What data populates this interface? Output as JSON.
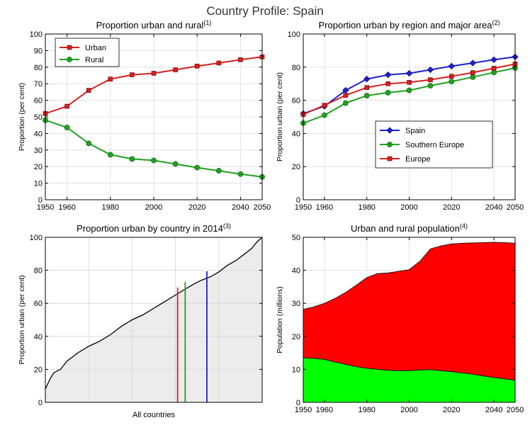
{
  "page": {
    "title": "Country Profile: Spain"
  },
  "chart_data": [
    {
      "type": "line",
      "title": "Proportion urban and rural",
      "note": "(1)",
      "xlabel": "",
      "ylabel": "Proportion (per cent)",
      "xlim": [
        1950,
        2050
      ],
      "ylim": [
        0,
        100
      ],
      "xticks": [
        1950,
        1960,
        1980,
        2000,
        2020,
        2040,
        2050
      ],
      "yticks": [
        0,
        10,
        20,
        30,
        40,
        50,
        60,
        70,
        80,
        90,
        100
      ],
      "grid": true,
      "legend": "top-left",
      "x": [
        1950,
        1960,
        1970,
        1980,
        1990,
        2000,
        2010,
        2020,
        2030,
        2040,
        2050
      ],
      "series": [
        {
          "name": "Urban",
          "color": "#d62020",
          "marker": "square",
          "values": [
            52.0,
            56.4,
            66.0,
            72.8,
            75.4,
            76.3,
            78.4,
            80.6,
            82.5,
            84.5,
            86.2
          ]
        },
        {
          "name": "Rural",
          "color": "#22a022",
          "marker": "circle",
          "values": [
            48.0,
            43.6,
            34.0,
            27.2,
            24.6,
            23.7,
            21.6,
            19.4,
            17.5,
            15.5,
            13.8
          ]
        }
      ]
    },
    {
      "type": "line",
      "title": "Proportion urban by region and major area",
      "note": "(2)",
      "xlabel": "",
      "ylabel": "Proportion urban (per cent)",
      "xlim": [
        1950,
        2050
      ],
      "ylim": [
        0,
        100
      ],
      "xticks": [
        1950,
        1960,
        1980,
        2000,
        2020,
        2040,
        2050
      ],
      "yticks": [
        0,
        20,
        40,
        60,
        80,
        100
      ],
      "grid": true,
      "legend": "center-right",
      "x": [
        1950,
        1960,
        1970,
        1980,
        1990,
        2000,
        2010,
        2020,
        2030,
        2040,
        2050
      ],
      "series": [
        {
          "name": "Spain",
          "color": "#1f1fcc",
          "marker": "diamond",
          "values": [
            52.0,
            56.4,
            66.0,
            72.8,
            75.4,
            76.3,
            78.4,
            80.6,
            82.5,
            84.5,
            86.2
          ]
        },
        {
          "name": "Southern Europe",
          "color": "#22a022",
          "marker": "circle",
          "values": [
            46.2,
            51.0,
            58.3,
            62.8,
            64.6,
            66.0,
            68.8,
            71.3,
            74.0,
            76.8,
            79.5
          ]
        },
        {
          "name": "Europe",
          "color": "#d62020",
          "marker": "square",
          "values": [
            51.5,
            57.0,
            63.0,
            67.7,
            70.0,
            70.8,
            72.4,
            74.5,
            76.7,
            79.3,
            81.9
          ]
        }
      ]
    },
    {
      "type": "area",
      "title": "Proportion urban by country in 2014",
      "note": "(3)",
      "xlabel": "All countries",
      "ylabel": "Proportion urban (per cent)",
      "ylim": [
        0,
        100
      ],
      "yticks": [
        0,
        20,
        40,
        60,
        80,
        100
      ],
      "grid": true,
      "fill_color": "#ececec",
      "curve_points": [
        [
          0.0,
          8
        ],
        [
          0.01,
          11
        ],
        [
          0.025,
          15
        ],
        [
          0.04,
          18
        ],
        [
          0.07,
          20
        ],
        [
          0.1,
          25
        ],
        [
          0.15,
          30
        ],
        [
          0.2,
          34
        ],
        [
          0.25,
          37
        ],
        [
          0.3,
          41
        ],
        [
          0.35,
          46
        ],
        [
          0.4,
          50
        ],
        [
          0.45,
          53
        ],
        [
          0.5,
          57
        ],
        [
          0.55,
          61
        ],
        [
          0.6,
          65
        ],
        [
          0.65,
          69
        ],
        [
          0.69,
          72
        ],
        [
          0.72,
          74
        ],
        [
          0.76,
          76
        ],
        [
          0.8,
          79
        ],
        [
          0.84,
          83
        ],
        [
          0.88,
          86
        ],
        [
          0.92,
          90
        ],
        [
          0.95,
          93
        ],
        [
          0.975,
          97
        ],
        [
          1.0,
          100
        ]
      ],
      "markers": [
        {
          "position": 0.61,
          "value": 69.6,
          "color": "#e02020"
        },
        {
          "position": 0.645,
          "value": 73.0,
          "color": "#22a022"
        },
        {
          "position": 0.745,
          "value": 79.4,
          "color": "#1f1fcc"
        }
      ]
    },
    {
      "type": "area",
      "title": "Urban and rural population",
      "note": "(4)",
      "xlabel": "",
      "ylabel": "Population (millions)",
      "xlim": [
        1950,
        2050
      ],
      "ylim": [
        0,
        50
      ],
      "xticks": [
        1950,
        1960,
        1980,
        2000,
        2020,
        2040,
        2050
      ],
      "yticks": [
        0,
        10,
        20,
        30,
        40,
        50
      ],
      "grid": true,
      "stacked": true,
      "x": [
        1950,
        1955,
        1960,
        1965,
        1970,
        1975,
        1980,
        1985,
        1990,
        1995,
        2000,
        2005,
        2010,
        2015,
        2020,
        2025,
        2030,
        2035,
        2040,
        2045,
        2050
      ],
      "series": [
        {
          "name": "",
          "color": "#00ff00",
          "values": [
            13.5,
            13.3,
            13.0,
            12.2,
            11.5,
            10.8,
            10.3,
            10.0,
            9.7,
            9.6,
            9.6,
            9.8,
            9.9,
            9.6,
            9.3,
            8.9,
            8.5,
            8.0,
            7.5,
            7.1,
            6.7
          ]
        },
        {
          "name": "",
          "color": "#ff0000",
          "values": [
            14.7,
            15.6,
            17.0,
            19.3,
            21.8,
            24.7,
            27.5,
            29.0,
            29.5,
            30.1,
            30.6,
            32.9,
            36.6,
            37.8,
            38.7,
            39.3,
            39.8,
            40.4,
            41.0,
            41.3,
            41.5
          ]
        }
      ]
    }
  ]
}
